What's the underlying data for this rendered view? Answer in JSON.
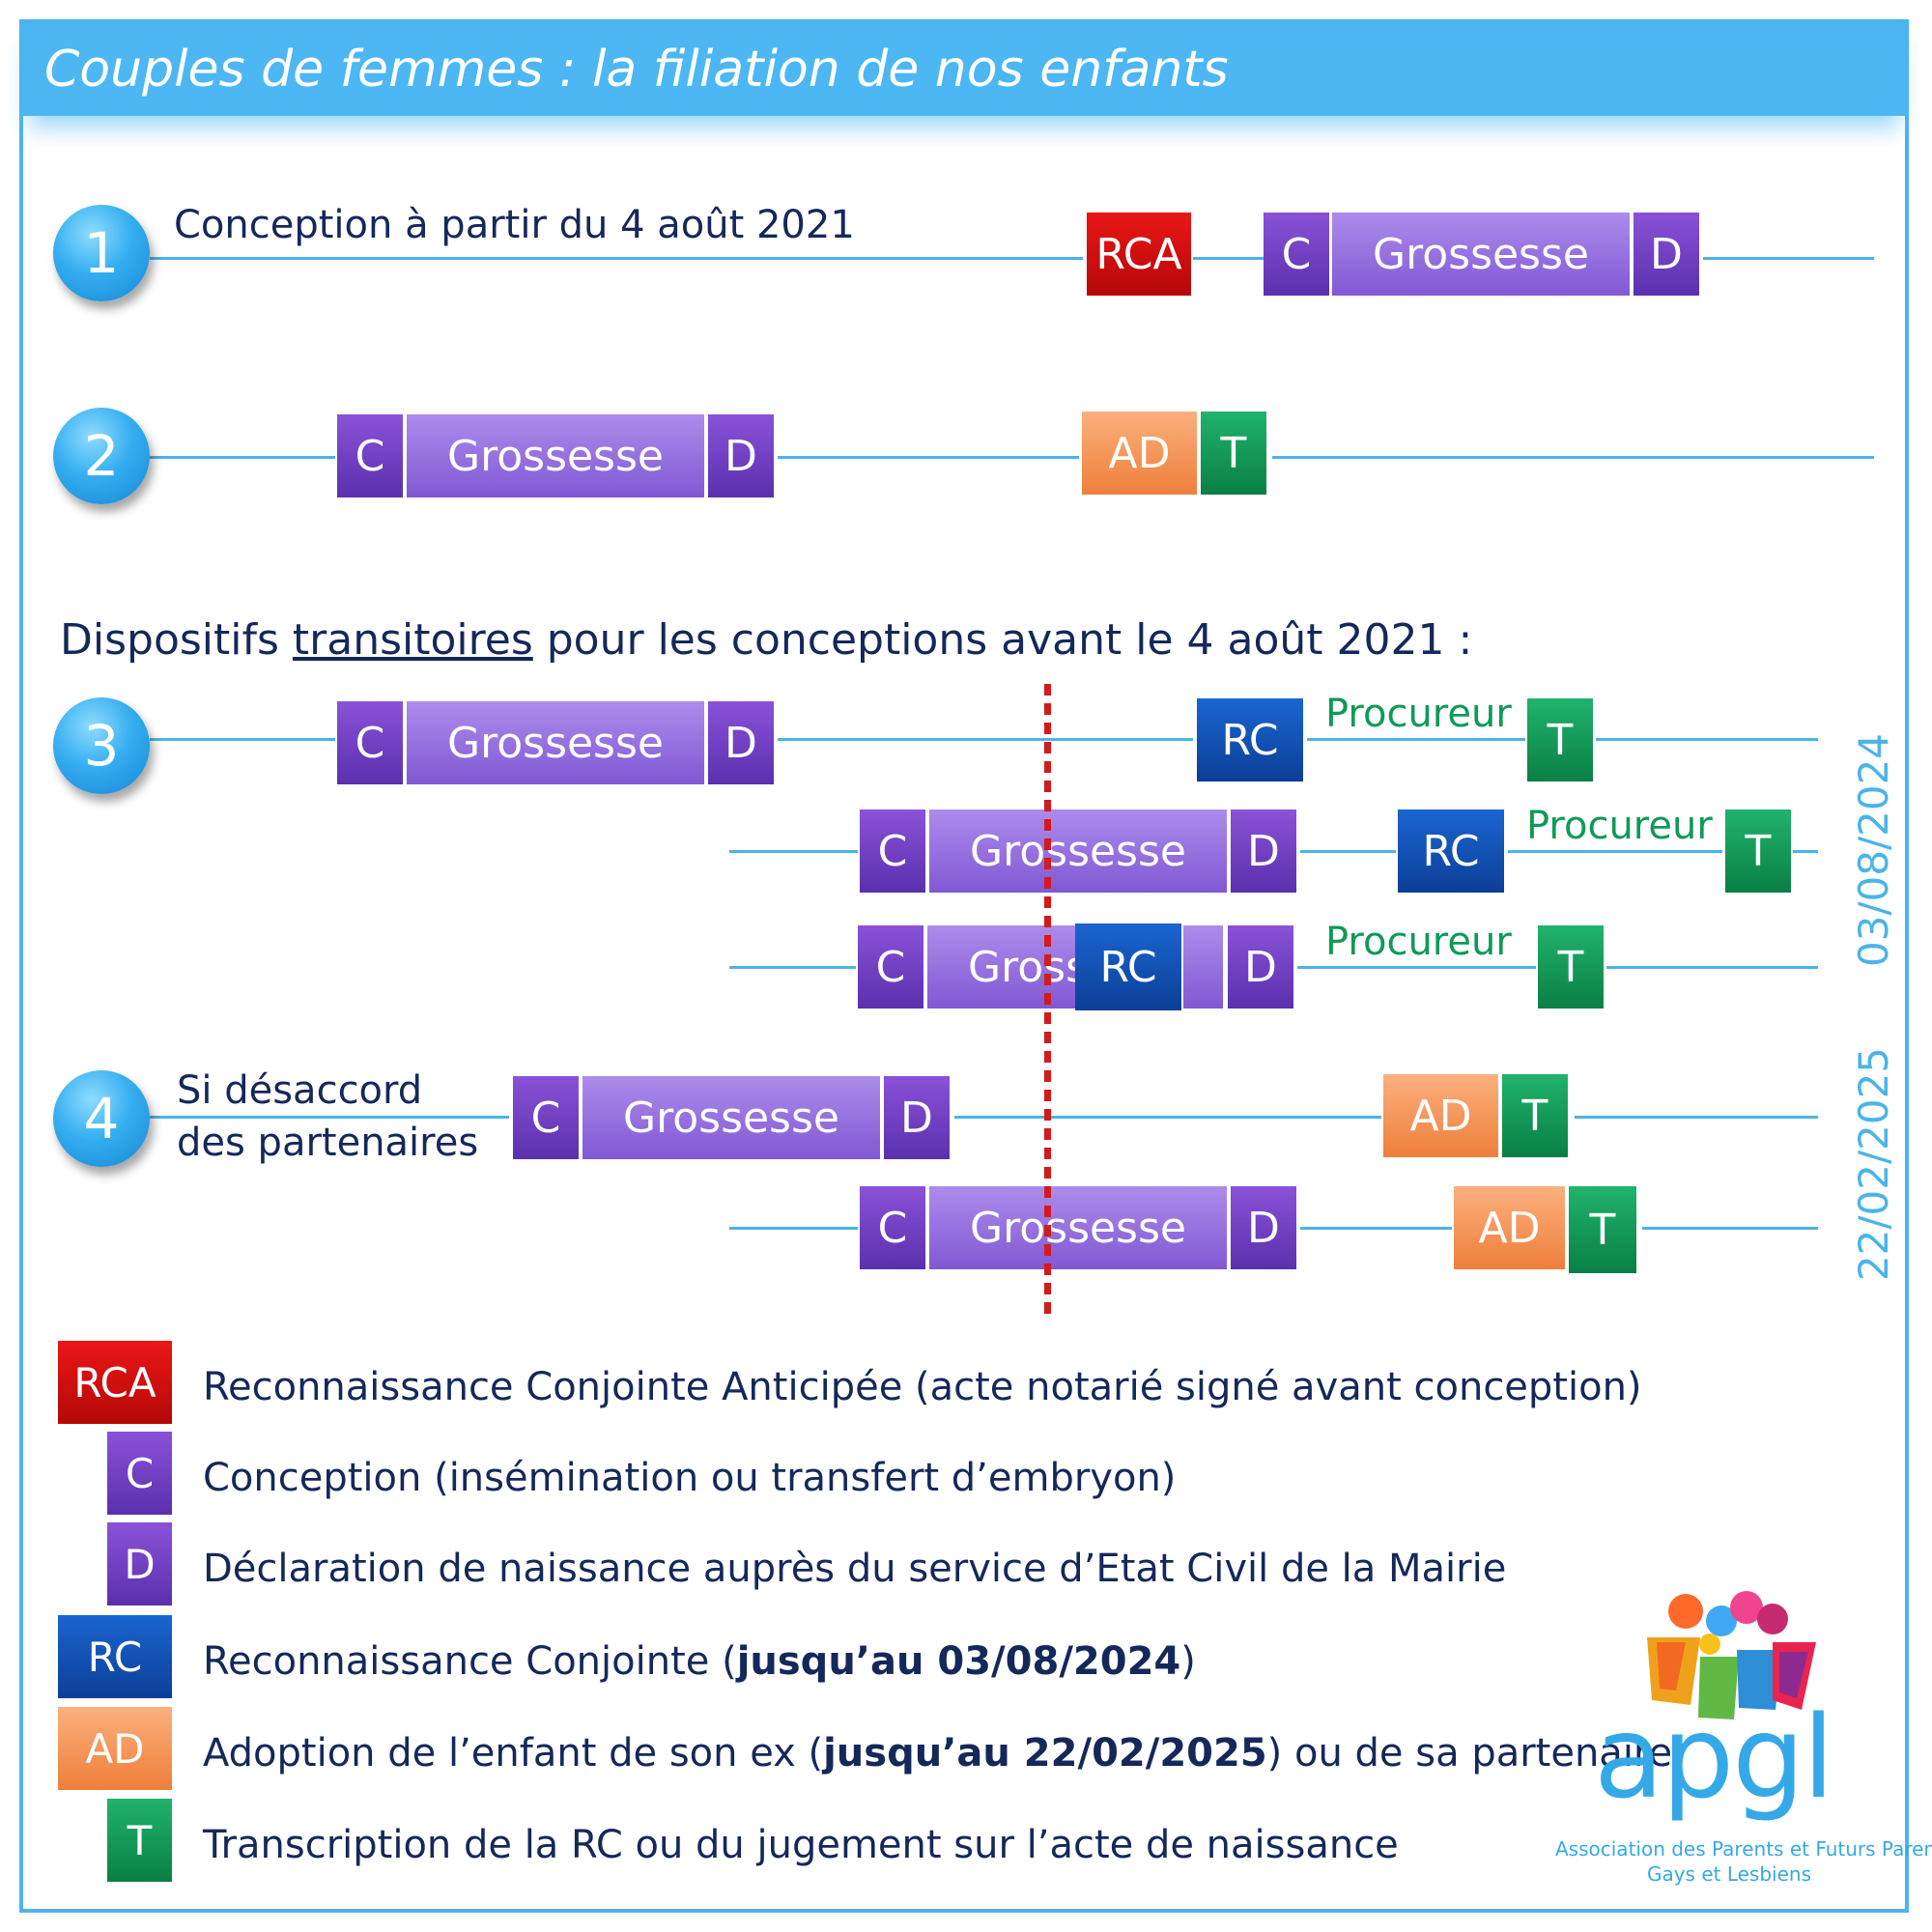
{
  "title": "Couples de femmes : la filiation de nos enfants",
  "rows": {
    "r1_num": "1",
    "r1_label": "Conception à partir du 4 août 2021",
    "r2_num": "2",
    "r3_num": "3",
    "r4_num": "4",
    "r4_label_line1": "Si désaccord",
    "r4_label_line2": "des partenaires"
  },
  "transitional_heading": {
    "before": "Dispositifs ",
    "underlined": "transitoires",
    "after": " pour les conceptions avant le 4 août 2021 :"
  },
  "boxes": {
    "rca": "RCA",
    "c": "C",
    "d": "D",
    "grossesse": "Grossesse",
    "gross_truncated": "Gross",
    "rc": "RC",
    "ad": "AD",
    "t": "T",
    "procureur": "Procureur"
  },
  "dates": {
    "rc_deadline": "03/08/2024",
    "ad_deadline": "22/02/2025"
  },
  "legend": [
    {
      "code": "RCA",
      "text": "Reconnaissance Conjointe Anticipée (acte notarié signé avant conception)"
    },
    {
      "code": "C",
      "text": "Conception (insémination ou transfert d’embryon)"
    },
    {
      "code": "D",
      "text": "Déclaration de naissance auprès du service d’Etat Civil de la Mairie"
    },
    {
      "code": "RC",
      "text_before": "Reconnaissance Conjointe (",
      "text_bold": "jusqu’au 03/08/2024",
      "text_after": ")"
    },
    {
      "code": "AD",
      "text_before": "Adoption de l’enfant de son ex (",
      "text_bold": "jusqu’au 22/02/2025",
      "text_after": ") ou de sa partenaire"
    },
    {
      "code": "T",
      "text": "Transcription de la RC ou du jugement sur l’acte de naissance"
    }
  ],
  "logo": {
    "name": "apgl",
    "tagline_line1": "Association des Parents et Futurs Parents",
    "tagline_line2": "Gays et Lesbiens"
  },
  "colors": {
    "header": "#4cb7f2",
    "line": "#4ab4ea",
    "rca": "#d40f0f",
    "conception_declaration": "#6f3fc4",
    "grossesse": "#9a77e0",
    "rc": "#1350b5",
    "ad": "#f5955a",
    "t": "#149a58",
    "deadline_marker": "#d41a1a"
  }
}
